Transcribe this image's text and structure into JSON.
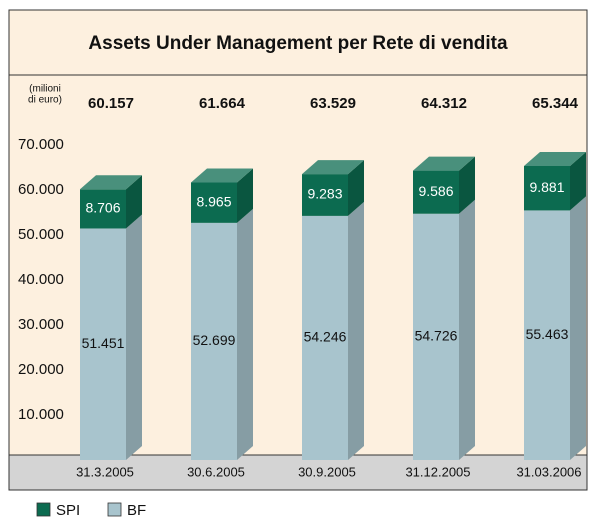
{
  "chart_data": {
    "type": "stacked_bar_3d",
    "title": "Assets Under Management per Rete di vendita",
    "ylabel": [
      "(milioni",
      "di euro)"
    ],
    "categories": [
      "31.3.2005",
      "30.6.2005",
      "30.9.2005",
      "31.12.2005",
      "31.03.2006"
    ],
    "series": [
      {
        "name": "BF",
        "color": "#a8c4cd",
        "values": [
          51451,
          52699,
          54246,
          54726,
          55463
        ],
        "value_labels": [
          "51.451",
          "52.699",
          "54.246",
          "54.726",
          "55.463"
        ]
      },
      {
        "name": "SPI",
        "color": "#0c6b50",
        "values": [
          8706,
          8965,
          9283,
          9586,
          9881
        ],
        "value_labels": [
          "8.706",
          "8.965",
          "9.283",
          "9.586",
          "9.881"
        ]
      }
    ],
    "totals": {
      "values": [
        60157,
        61664,
        63529,
        64312,
        65344
      ],
      "value_labels": [
        "60.157",
        "61.664",
        "63.529",
        "64.312",
        "65.344"
      ]
    },
    "ylim": [
      0,
      70000
    ],
    "yticks": [
      {
        "value": 10000,
        "label": "10.000"
      },
      {
        "value": 20000,
        "label": "20.000"
      },
      {
        "value": 30000,
        "label": "30.000"
      },
      {
        "value": 40000,
        "label": "40.000"
      },
      {
        "value": 50000,
        "label": "50.000"
      },
      {
        "value": 60000,
        "label": "60.000"
      },
      {
        "value": 70000,
        "label": "70.000"
      }
    ],
    "legend_order": [
      "SPI",
      "BF"
    ]
  }
}
